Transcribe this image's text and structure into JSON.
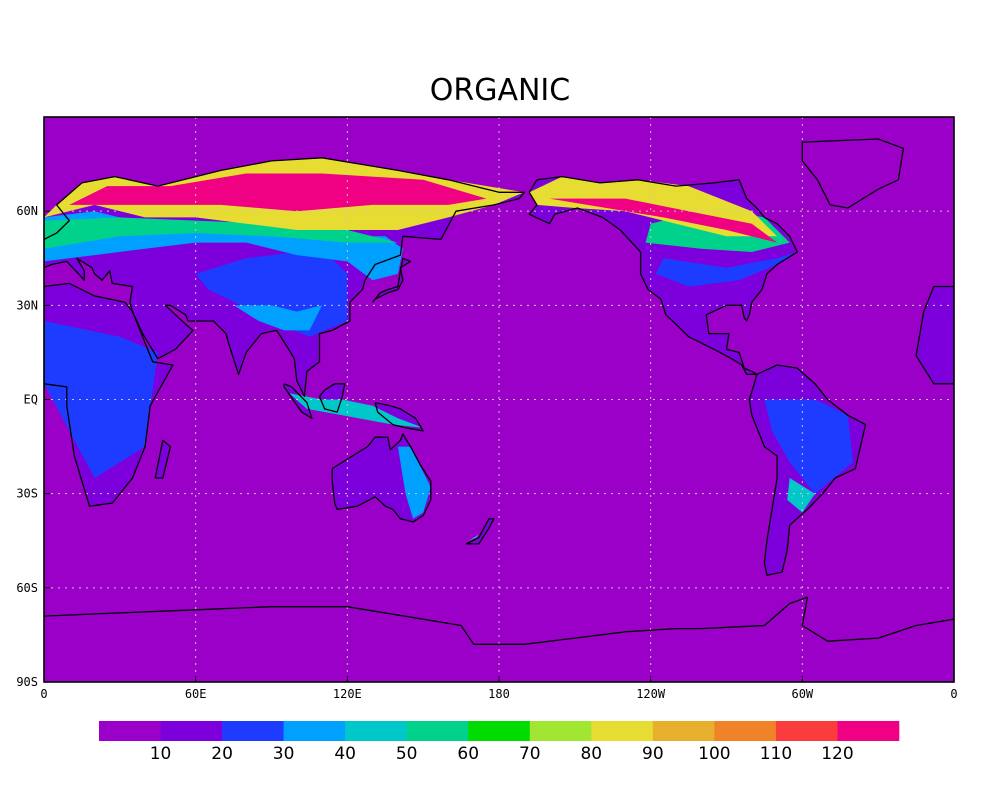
{
  "title": "ORGANIC",
  "map": {
    "projection": "cylindrical-equidistant",
    "lon_range": [
      0,
      360
    ],
    "lat_range": [
      -90,
      90
    ],
    "ocean_color": "#9a00c8",
    "grid": "dotted",
    "lat_labels": [
      {
        "lat": 60,
        "text": "60N"
      },
      {
        "lat": 30,
        "text": "30N"
      },
      {
        "lat": 0,
        "text": "EQ"
      },
      {
        "lat": -30,
        "text": "30S"
      },
      {
        "lat": -60,
        "text": "60S"
      },
      {
        "lat": -90,
        "text": "90S"
      }
    ],
    "lon_labels": [
      {
        "lon": 0,
        "text": "0"
      },
      {
        "lon": 60,
        "text": "60E"
      },
      {
        "lon": 120,
        "text": "120E"
      },
      {
        "lon": 180,
        "text": "180"
      },
      {
        "lon": 240,
        "text": "120W"
      },
      {
        "lon": 300,
        "text": "60W"
      },
      {
        "lon": 360,
        "text": "0"
      }
    ]
  },
  "colorbar": {
    "colors": [
      "#9a00c8",
      "#7d00dc",
      "#1e3cff",
      "#00a0ff",
      "#00c8c8",
      "#00d28c",
      "#00dc00",
      "#a0e632",
      "#e6dc32",
      "#e6af2d",
      "#f08228",
      "#fa3c3c",
      "#f00082"
    ],
    "labels": [
      "10",
      "20",
      "30",
      "40",
      "50",
      "60",
      "70",
      "80",
      "90",
      "100",
      "110",
      "120"
    ]
  }
}
